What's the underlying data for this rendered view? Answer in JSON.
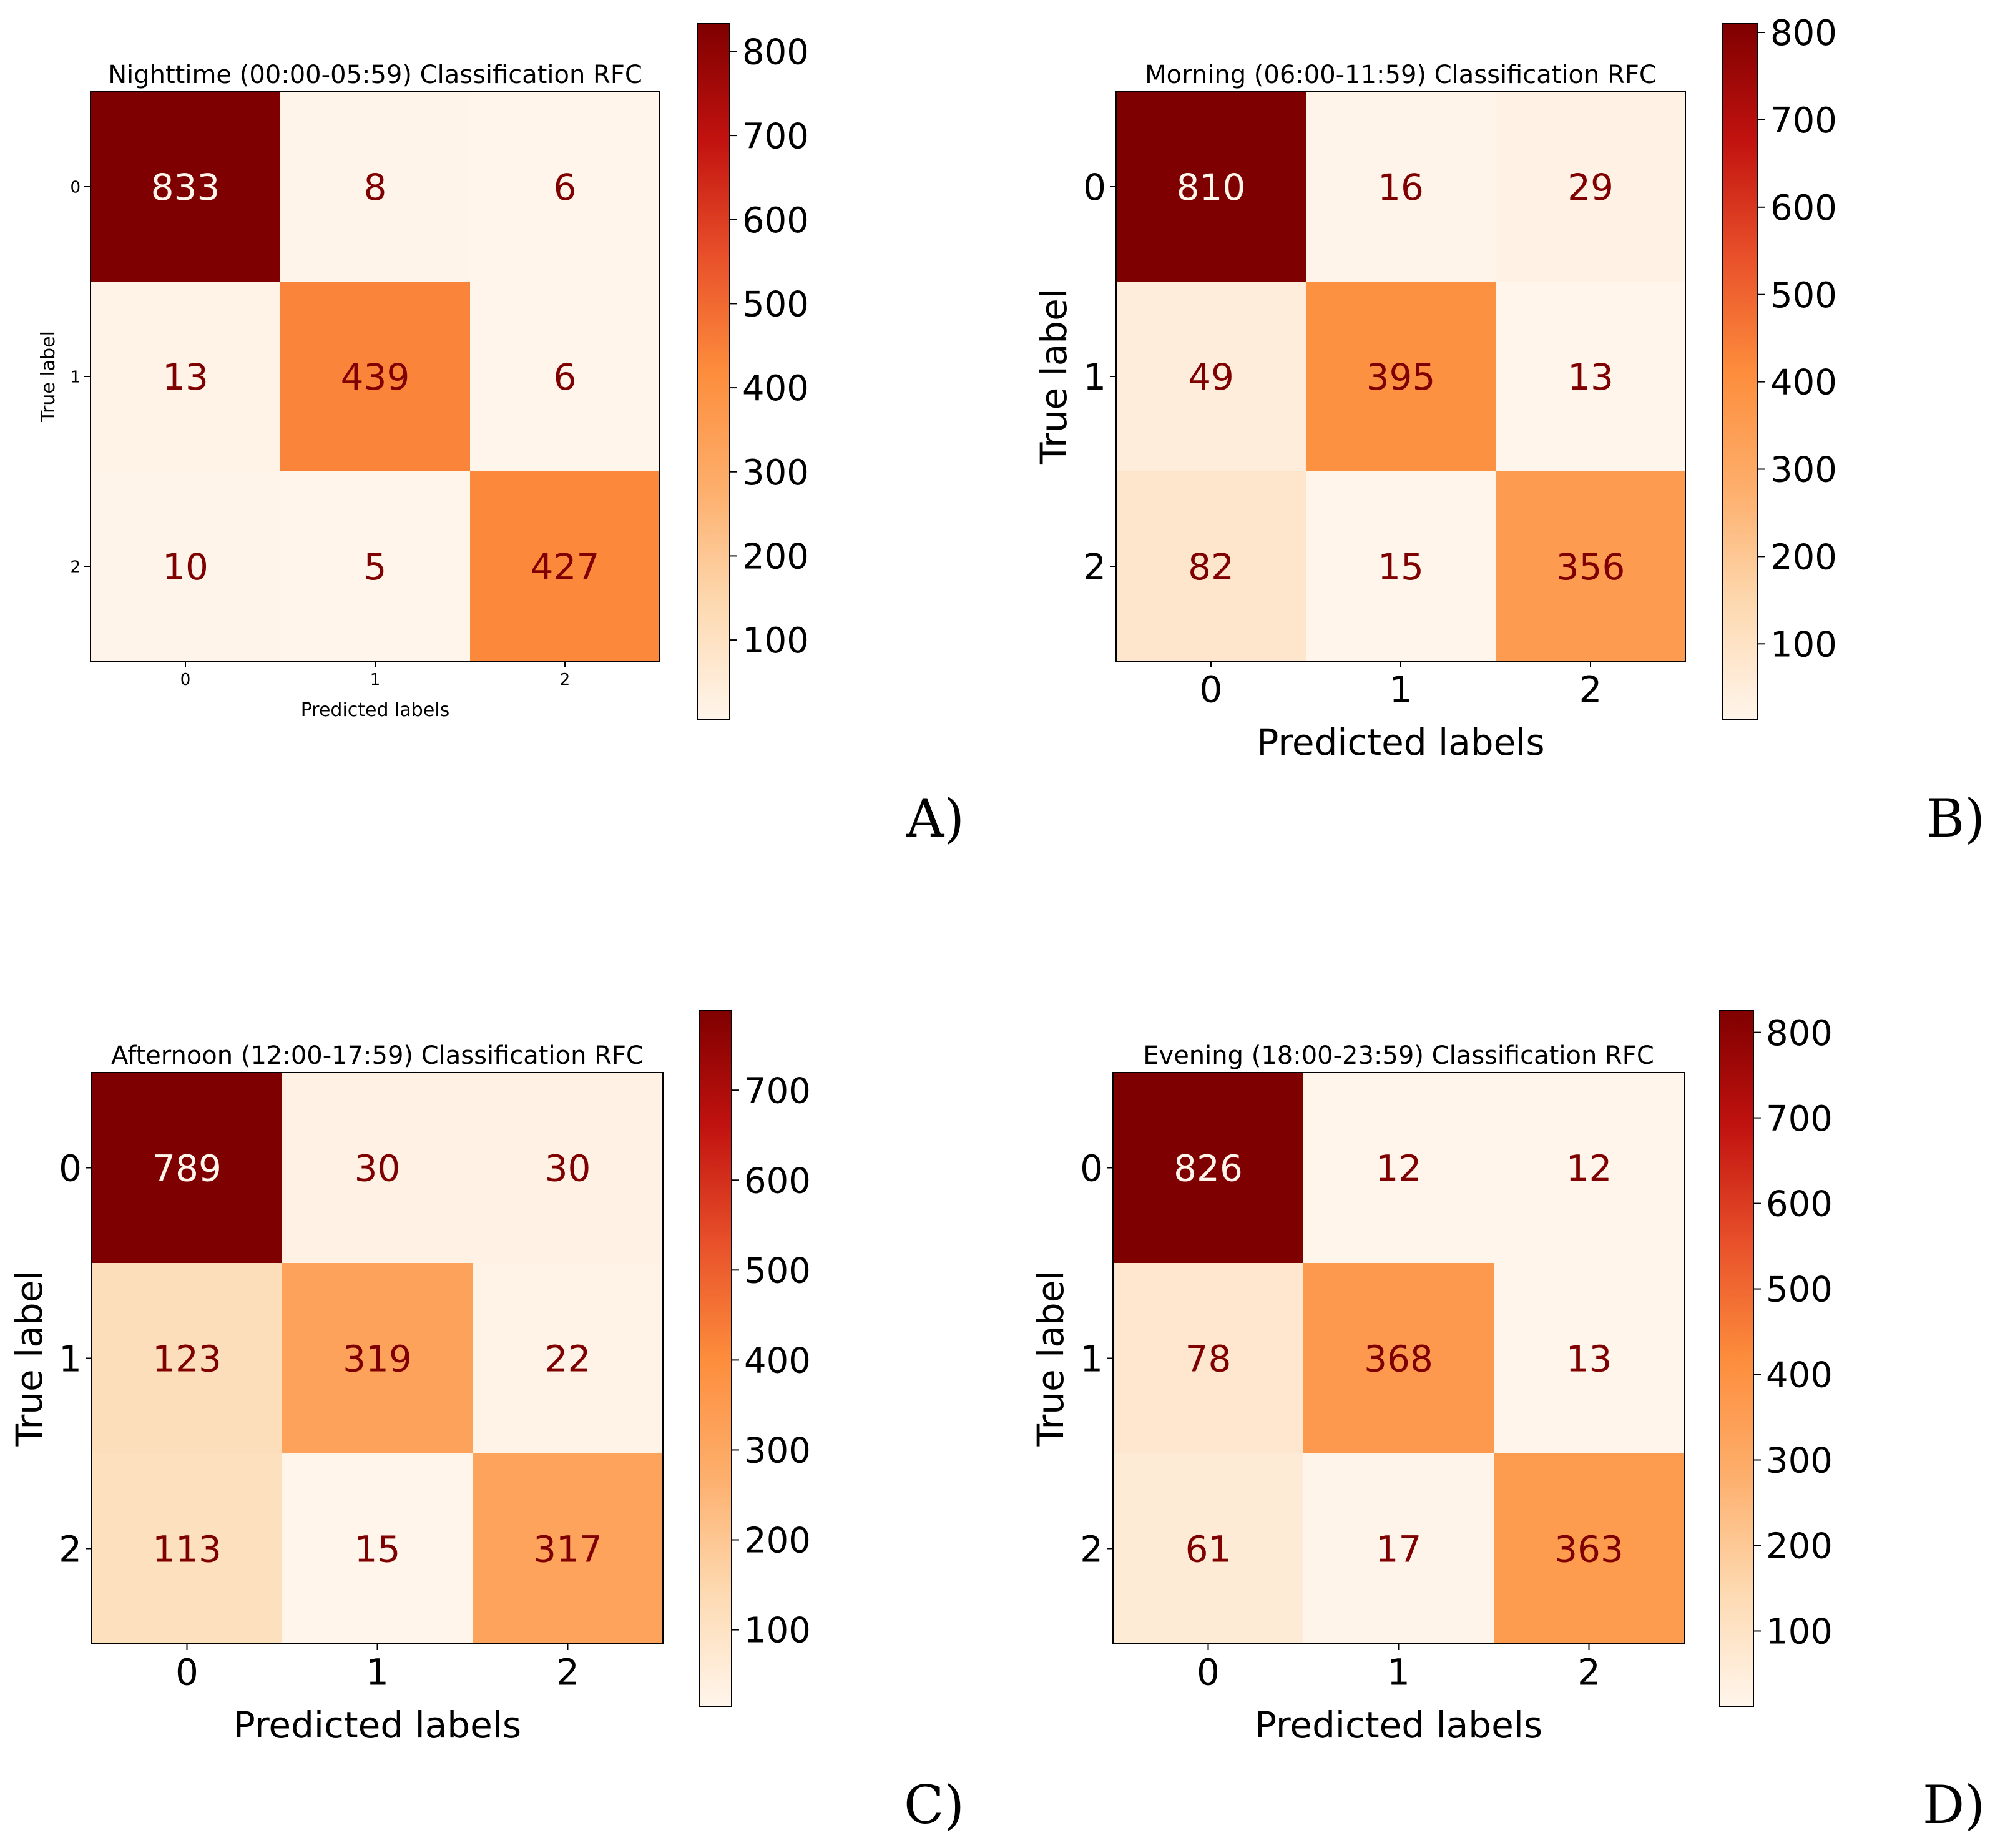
{
  "colormap": [
    "#fff5eb",
    "#fdd9b0",
    "#fdae6b",
    "#fd8d3c",
    "#e8502a",
    "#c1120f",
    "#7f0000"
  ],
  "text_colors": {
    "dark": "#7f0000",
    "light": "#fff5eb"
  },
  "chart_data": [
    {
      "type": "heatmap",
      "panel_label": "A)",
      "title": "Nighttime (00:00-05:59) Classification RFC",
      "xlabel": "Predicted labels",
      "ylabel": "True label",
      "categories": [
        "0",
        "1",
        "2"
      ],
      "matrix": [
        [
          833,
          8,
          6
        ],
        [
          13,
          439,
          6
        ],
        [
          10,
          5,
          427
        ]
      ],
      "color_range": [
        5,
        833
      ],
      "colorbar_ticks": [
        100,
        200,
        300,
        400,
        500,
        600,
        700,
        800
      ]
    },
    {
      "type": "heatmap",
      "panel_label": "B)",
      "title": "Morning (06:00-11:59) Classification RFC",
      "xlabel": "Predicted labels",
      "ylabel": "True label",
      "categories": [
        "0",
        "1",
        "2"
      ],
      "matrix": [
        [
          810,
          16,
          29
        ],
        [
          49,
          395,
          13
        ],
        [
          82,
          15,
          356
        ]
      ],
      "color_range": [
        13,
        810
      ],
      "colorbar_ticks": [
        100,
        200,
        300,
        400,
        500,
        600,
        700,
        800
      ]
    },
    {
      "type": "heatmap",
      "panel_label": "C)",
      "title": "Afternoon (12:00-17:59) Classification RFC",
      "xlabel": "Predicted labels",
      "ylabel": "True label",
      "categories": [
        "0",
        "1",
        "2"
      ],
      "matrix": [
        [
          789,
          30,
          30
        ],
        [
          123,
          319,
          22
        ],
        [
          113,
          15,
          317
        ]
      ],
      "color_range": [
        15,
        789
      ],
      "colorbar_ticks": [
        100,
        200,
        300,
        400,
        500,
        600,
        700
      ]
    },
    {
      "type": "heatmap",
      "panel_label": "D)",
      "title": "Evening (18:00-23:59) Classification RFC",
      "xlabel": "Predicted labels",
      "ylabel": "True label",
      "categories": [
        "0",
        "1",
        "2"
      ],
      "matrix": [
        [
          826,
          12,
          12
        ],
        [
          78,
          368,
          13
        ],
        [
          61,
          17,
          363
        ]
      ],
      "color_range": [
        12,
        826
      ],
      "colorbar_ticks": [
        100,
        200,
        300,
        400,
        500,
        600,
        700,
        800
      ]
    }
  ]
}
